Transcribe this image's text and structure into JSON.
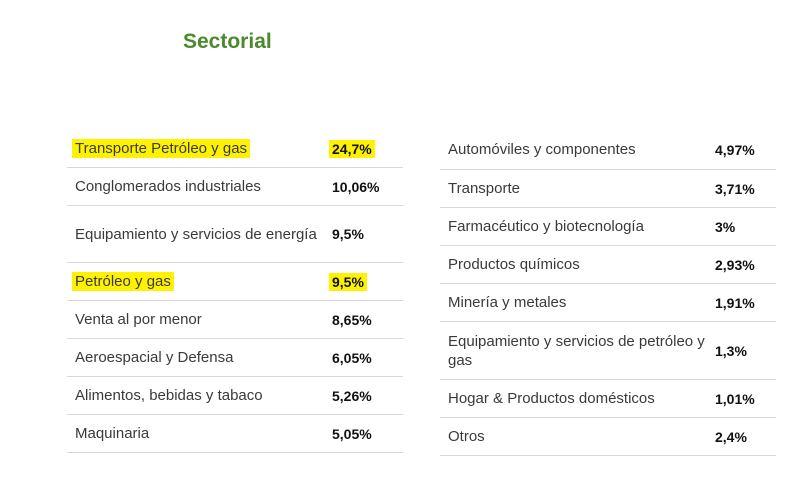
{
  "title": "Sectorial",
  "highlight_color": "#fff200",
  "title_color": "#4a8a2c",
  "left_table": [
    {
      "label": "Transporte Petróleo y gas",
      "value": "24,7%",
      "highlighted": true
    },
    {
      "label": "Conglomerados industriales",
      "value": "10,06%",
      "highlighted": false
    },
    {
      "label": "Equipamiento y servicios de energía",
      "value": "9,5%",
      "highlighted": false
    },
    {
      "label": "Petróleo y gas",
      "value": "9,5%",
      "highlighted": true
    },
    {
      "label": "Venta al por menor",
      "value": "8,65%",
      "highlighted": false
    },
    {
      "label": "Aeroespacial y Defensa",
      "value": "6,05%",
      "highlighted": false
    },
    {
      "label": "Alimentos, bebidas y tabaco",
      "value": "5,26%",
      "highlighted": false
    },
    {
      "label": "Maquinaria",
      "value": "5,05%",
      "highlighted": false
    }
  ],
  "right_table": [
    {
      "label": "Automóviles y componentes",
      "value": "4,97%"
    },
    {
      "label": "Transporte",
      "value": "3,71%"
    },
    {
      "label": "Farmacéutico y biotecnología",
      "value": "3%"
    },
    {
      "label": "Productos químicos",
      "value": "2,93%"
    },
    {
      "label": "Minería y metales",
      "value": "1,91%"
    },
    {
      "label": "Equipamiento y servicios de petróleo y gas",
      "value": "1,3%"
    },
    {
      "label": "Hogar & Productos domésticos",
      "value": "1,01%"
    },
    {
      "label": "Otros",
      "value": "2,4%"
    }
  ]
}
